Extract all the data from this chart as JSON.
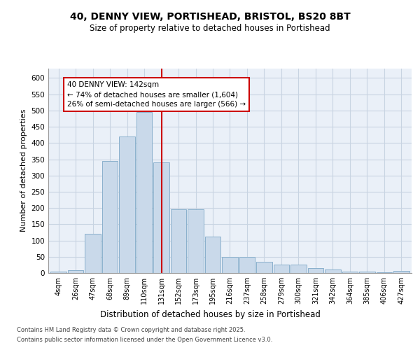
{
  "title_line1": "40, DENNY VIEW, PORTISHEAD, BRISTOL, BS20 8BT",
  "title_line2": "Size of property relative to detached houses in Portishead",
  "xlabel": "Distribution of detached houses by size in Portishead",
  "ylabel": "Number of detached properties",
  "categories": [
    "4sqm",
    "26sqm",
    "47sqm",
    "68sqm",
    "89sqm",
    "110sqm",
    "131sqm",
    "152sqm",
    "173sqm",
    "195sqm",
    "216sqm",
    "237sqm",
    "258sqm",
    "279sqm",
    "300sqm",
    "321sqm",
    "342sqm",
    "364sqm",
    "385sqm",
    "406sqm",
    "427sqm"
  ],
  "values": [
    5,
    8,
    120,
    345,
    420,
    495,
    340,
    195,
    195,
    112,
    50,
    50,
    35,
    25,
    25,
    15,
    10,
    5,
    5,
    3,
    6
  ],
  "bar_color": "#c9d9ea",
  "bar_edge_color": "#8ab0cc",
  "grid_color": "#c8d4e2",
  "bg_color": "#eaf0f8",
  "marker_bin_index": 6,
  "marker_color": "#cc0000",
  "annotation_text": "40 DENNY VIEW: 142sqm\n← 74% of detached houses are smaller (1,604)\n26% of semi-detached houses are larger (566) →",
  "ylim": [
    0,
    630
  ],
  "yticks": [
    0,
    50,
    100,
    150,
    200,
    250,
    300,
    350,
    400,
    450,
    500,
    550,
    600
  ],
  "footer_line1": "Contains HM Land Registry data © Crown copyright and database right 2025.",
  "footer_line2": "Contains public sector information licensed under the Open Government Licence v3.0."
}
